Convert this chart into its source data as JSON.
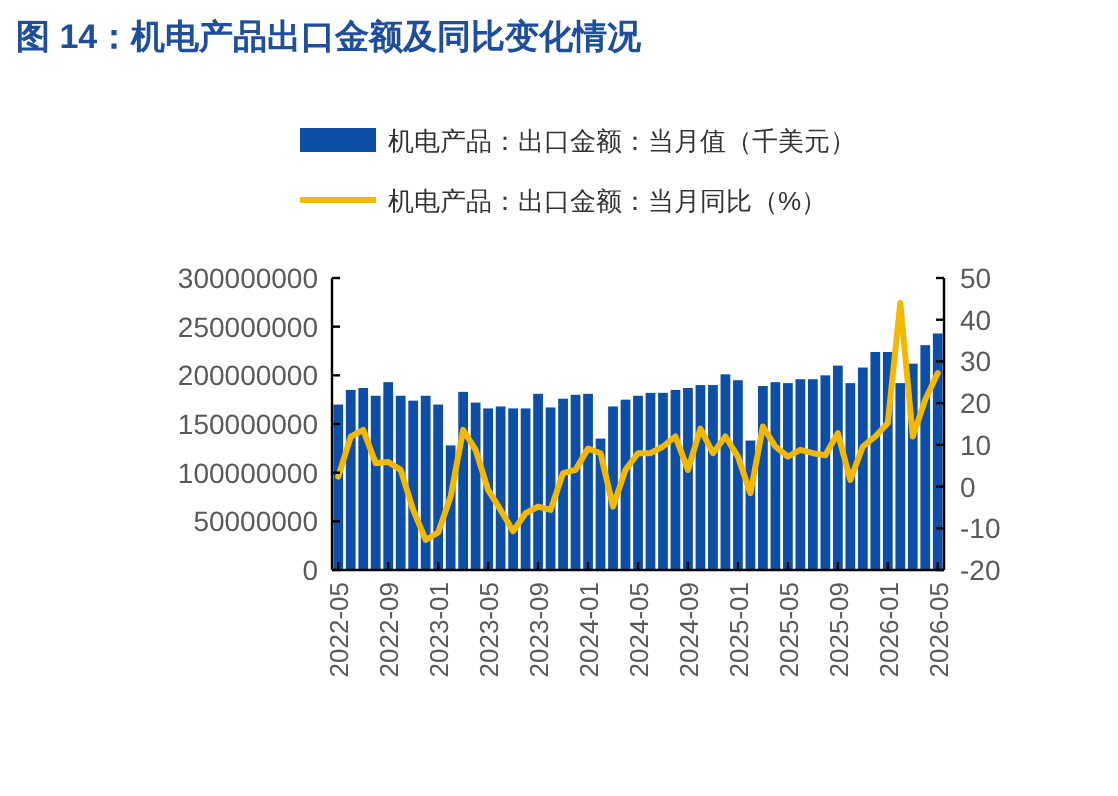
{
  "chart_data": {
    "type": "bar",
    "title": "图 14：机电产品出口金额及同比变化情况",
    "x": [
      "2022-05",
      "2022-06",
      "2022-07",
      "2022-08",
      "2022-09",
      "2022-10",
      "2022-11",
      "2022-12",
      "2023-01",
      "2023-02",
      "2023-03",
      "2023-04",
      "2023-05",
      "2023-06",
      "2023-07",
      "2023-08",
      "2023-09",
      "2023-10",
      "2023-11",
      "2023-12",
      "2024-01",
      "2024-02",
      "2024-03",
      "2024-04",
      "2024-05",
      "2024-06",
      "2024-07",
      "2024-08",
      "2024-09",
      "2024-10",
      "2024-11",
      "2024-12",
      "2025-01",
      "2025-02",
      "2025-03",
      "2025-04",
      "2025-05",
      "2025-06",
      "2025-07",
      "2025-08",
      "2025-09",
      "2025-10",
      "2025-11",
      "2025-12",
      "2026-01",
      "2026-02",
      "2026-03",
      "2026-04",
      "2026-05"
    ],
    "xlim": [
      "2022-05",
      "2026-05"
    ],
    "xticks": [
      "2022-05",
      "2022-09",
      "2023-01",
      "2023-05",
      "2023-09",
      "2024-01",
      "2024-05",
      "2024-09",
      "2025-01",
      "2025-05",
      "2025-09",
      "2026-01",
      "2026-05"
    ],
    "ylim": [
      0,
      300000000
    ],
    "yticks": [
      0,
      50000000,
      100000000,
      150000000,
      200000000,
      250000000,
      300000000
    ],
    "y2lim": [
      -20,
      50
    ],
    "y2ticks": [
      -20,
      -10,
      0,
      10,
      20,
      30,
      40,
      50
    ],
    "legend": "top",
    "grid": false,
    "series": [
      {
        "name": "机电产品：出口金额：当月值（千美元）",
        "color": "#0d4ea6",
        "values": [
          170000000,
          185000000,
          187000000,
          179000000,
          193000000,
          179000000,
          174000000,
          179000000,
          170000000,
          128000000,
          183000000,
          172000000,
          166000000,
          168000000,
          166000000,
          166000000,
          181000000,
          167000000,
          176000000,
          180000000,
          181000000,
          135000000,
          168000000,
          175000000,
          179000000,
          182000000,
          182000000,
          185000000,
          187000000,
          190000000,
          190000000,
          201000000,
          195000000,
          133000000,
          189000000,
          193000000,
          192000000,
          196000000,
          196000000,
          200000000,
          210000000,
          192000000,
          208000000,
          224000000,
          224000000,
          192000000,
          212000000,
          231000000,
          243000000
        ]
      },
      {
        "name": "机电产品：出口金额：当月同比（%）",
        "type": "line",
        "axis": "y2",
        "color": "#f5b800",
        "values": [
          2.4,
          12,
          13.6,
          5.6,
          5.9,
          4,
          -5.6,
          -12.8,
          -11,
          -2.4,
          13.6,
          8.8,
          -0.8,
          -5.6,
          -10.7,
          -6.4,
          -4.8,
          -5.6,
          3.2,
          4,
          9.1,
          8,
          -4.8,
          4,
          8,
          8,
          9.6,
          12,
          4,
          13.9,
          8,
          12,
          7.2,
          -1.6,
          14.4,
          9.6,
          7.2,
          8.8,
          8,
          7.5,
          12.8,
          1.6,
          9.6,
          12,
          15.2,
          44,
          12,
          20.8,
          27.2
        ]
      }
    ]
  }
}
